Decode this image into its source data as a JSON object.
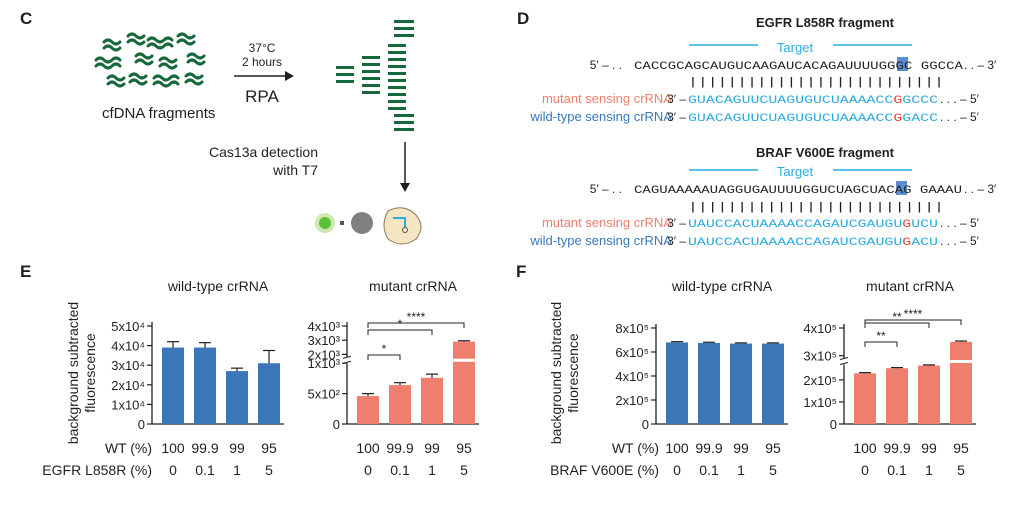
{
  "colors": {
    "green": "#16693a",
    "cyan": "#29abe2",
    "blue_bar": "#3b77b8",
    "red_bar": "#ee7e6d",
    "mutant_label": "#ee7e6d",
    "wildtype_label": "#3b77b8",
    "mismatch_red": "#ef3e36",
    "highlight": "#5b8fd0"
  },
  "panel_c": {
    "letter": "C",
    "condition_temp": "37°C",
    "condition_time": "2 hours",
    "amplification": "RPA",
    "input_label": "cfDNA fragments",
    "detection_line1": "Cas13a detection",
    "detection_line2": "with T7"
  },
  "panel_d": {
    "letter": "D",
    "egfr": {
      "title": "EGFR L858R fragment",
      "target_label": "Target",
      "top_prefix": "5′ – . .",
      "top_seq_pre": "CACCGCAGCAUGUCAAGAUCACAGAUUUUGGGC",
      "top_seq_hl": "G",
      "top_seq_post": "GGCCA",
      "top_suffix": ". . – 3′",
      "pairing": "||||||||||||||||||||||||||",
      "mutant_label": "mutant sensing crRNA",
      "wt_label": "wild-type sensing crRNA",
      "crrna_prefix": "3′ –",
      "mut_seq_pre": "GUACAGUUCUAGUGUCUAAAACC",
      "mut_seq_mm": "G",
      "mut_seq_post": "GCCC",
      "wt_seq_pre": "GUACAGUUCUAGUGUCUAAAACC",
      "wt_seq_mm": "G",
      "wt_seq_post": "GACC",
      "crrna_suffix": ". . . – 5′"
    },
    "braf": {
      "title": "BRAF V600E fragment",
      "target_label": "Target",
      "top_prefix": "5′ – . .",
      "top_seq_pre": "CAGUAAAAAUAGGUGAUUUUGGUCUAGCUACAG",
      "top_seq_hl": "A",
      "top_seq_post": "GAAAU",
      "top_suffix": ". . – 3′",
      "pairing": "||||||||||||||||||||||||||",
      "mutant_label": "mutant sensing crRNA",
      "wt_label": "wild-type sensing crRNA",
      "crrna_prefix": "3′ –",
      "mut_seq_pre": "UAUCCACUAAAACCAGAUCGAUGU",
      "mut_seq_mm": "G",
      "mut_seq_post": "UCU",
      "wt_seq_pre": "UAUCCACUAAAACCAGAUCGAUGU",
      "wt_seq_mm": "G",
      "wt_seq_post": "ACU",
      "crrna_suffix": ". . . – 5′"
    }
  },
  "panel_e": {
    "letter": "E",
    "ylabel_line1": "background subtracted",
    "ylabel_line2": "fluorescence",
    "row1_label": "WT (%)",
    "row2_label": "EGFR L858R (%)",
    "row1_values": [
      "100",
      "99.9",
      "99",
      "95"
    ],
    "row2_values": [
      "0",
      "0.1",
      "1",
      "5"
    ]
  },
  "panel_f": {
    "letter": "F",
    "ylabel_line1": "background subtracted",
    "ylabel_line2": "fluorescence",
    "row1_label": "WT (%)",
    "row2_label": "BRAF V600E (%)",
    "row1_values": [
      "100",
      "99.9",
      "99",
      "95"
    ],
    "row2_values": [
      "0",
      "0.1",
      "1",
      "5"
    ]
  },
  "chart_data": [
    {
      "id": "E-wildtype",
      "type": "bar",
      "title": "wild-type crRNA",
      "categories": [
        "100/0",
        "99.9/0.1",
        "99/1",
        "95/5"
      ],
      "values": [
        39000,
        39000,
        27000,
        31000
      ],
      "errors": [
        3000,
        2500,
        1500,
        6500
      ],
      "ylim": [
        0,
        50000
      ],
      "yticks": [
        {
          "v": 0,
          "label": "0"
        },
        {
          "v": 10000,
          "label": "1x10⁴"
        },
        {
          "v": 20000,
          "label": "2x10⁴"
        },
        {
          "v": 30000,
          "label": "3x10⁴"
        },
        {
          "v": 40000,
          "label": "4x10⁴"
        },
        {
          "v": 50000,
          "label": "5x10⁴"
        }
      ],
      "color": "blue",
      "broken": false,
      "significance": []
    },
    {
      "id": "E-mutant",
      "type": "bar",
      "title": "mutant crRNA",
      "categories": [
        "100/0",
        "99.9/0.1",
        "99/1",
        "95/5"
      ],
      "values": [
        460,
        640,
        760,
        2900
      ],
      "errors": [
        40,
        40,
        60,
        60
      ],
      "ylim": [
        0,
        4000
      ],
      "yticks": [
        {
          "v": 0,
          "label": "0"
        },
        {
          "v": 500,
          "label": "5x10²"
        },
        {
          "v": 1000,
          "label": "1x10³"
        },
        {
          "v": 2000,
          "label": "2x10³"
        },
        {
          "v": 3000,
          "label": "3x10³"
        },
        {
          "v": 4000,
          "label": "4x10³"
        }
      ],
      "color": "red",
      "broken": true,
      "break_low": 1000,
      "break_high": 1800,
      "significance": [
        {
          "from": 0,
          "to": 1,
          "label": "*"
        },
        {
          "from": 0,
          "to": 2,
          "label": "*"
        },
        {
          "from": 0,
          "to": 3,
          "label": "****"
        }
      ]
    },
    {
      "id": "F-wildtype",
      "type": "bar",
      "title": "wild-type crRNA",
      "categories": [
        "100/0",
        "99.9/0.1",
        "99/1",
        "95/5"
      ],
      "values": [
        680000,
        675000,
        670000,
        670000
      ],
      "errors": [
        6000,
        6000,
        6000,
        6000
      ],
      "ylim": [
        0,
        800000
      ],
      "yticks": [
        {
          "v": 0,
          "label": "0"
        },
        {
          "v": 200000,
          "label": "2x10⁵"
        },
        {
          "v": 400000,
          "label": "4x10⁵"
        },
        {
          "v": 600000,
          "label": "6x10⁵"
        },
        {
          "v": 800000,
          "label": "8x10⁵"
        }
      ],
      "color": "blue",
      "broken": false,
      "significance": []
    },
    {
      "id": "F-mutant",
      "type": "bar",
      "title": "mutant crRNA",
      "categories": [
        "100/0",
        "99.9/0.1",
        "99/1",
        "95/5"
      ],
      "values": [
        230000,
        253000,
        265000,
        350000
      ],
      "errors": [
        3000,
        3000,
        3000,
        3000
      ],
      "ylim": [
        0,
        400000
      ],
      "yticks": [
        {
          "v": 0,
          "label": "0"
        },
        {
          "v": 100000,
          "label": "1x10⁵"
        },
        {
          "v": 200000,
          "label": "2x10⁵"
        },
        {
          "v": 300000,
          "label": "3x10⁵"
        },
        {
          "v": 400000,
          "label": "4x10⁵"
        }
      ],
      "color": "red",
      "broken": true,
      "break_low": 270000,
      "break_high": 290000,
      "significance": [
        {
          "from": 0,
          "to": 1,
          "label": "**"
        },
        {
          "from": 0,
          "to": 2,
          "label": "**"
        },
        {
          "from": 0,
          "to": 3,
          "label": "****"
        }
      ]
    }
  ]
}
